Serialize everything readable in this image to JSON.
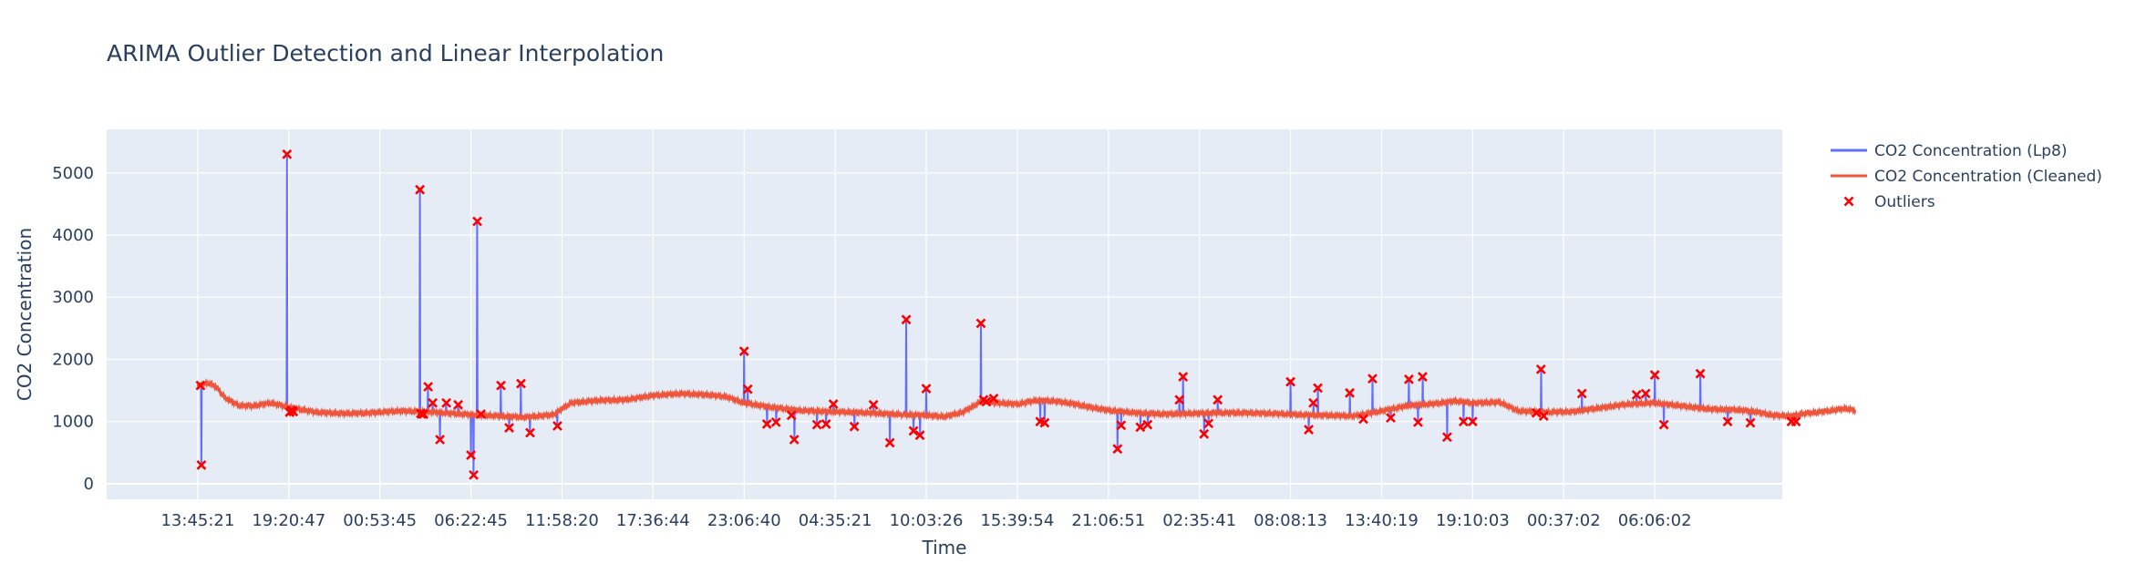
{
  "chart_data": {
    "type": "line",
    "title": "ARIMA Outlier Detection and Linear Interpolation",
    "xlabel": "Time",
    "ylabel": "CO2 Concentration",
    "ylim": [
      -250,
      5700
    ],
    "yticks": [
      0,
      1000,
      2000,
      3000,
      4000,
      5000
    ],
    "xlim": [
      -1.0,
      17.4
    ],
    "xticks": [
      0,
      1,
      2,
      3,
      4,
      5,
      6,
      7,
      8,
      9,
      10,
      11,
      12,
      13,
      14,
      15,
      16
    ],
    "xtick_labels": [
      "13:45:21",
      "19:20:47",
      "00:53:45",
      "06:22:45",
      "11:58:20",
      "17:36:44",
      "23:06:40",
      "04:35:21",
      "10:03:26",
      "15:39:54",
      "21:06:51",
      "02:35:41",
      "08:08:13",
      "13:40:19",
      "19:10:03",
      "00:37:02",
      "06:06:02"
    ],
    "grid": true,
    "legend_position": "top-right",
    "colors": {
      "raw": "#636efa",
      "cleaned": "#ef553b",
      "outliers": "#ff0000",
      "plot_bg": "#e5ecf6",
      "grid": "#ffffff",
      "text": "#2a3f5f"
    },
    "baseline": [
      [
        0.0,
        1560
      ],
      [
        0.05,
        1600
      ],
      [
        0.12,
        1620
      ],
      [
        0.2,
        1560
      ],
      [
        0.3,
        1380
      ],
      [
        0.45,
        1260
      ],
      [
        0.6,
        1250
      ],
      [
        0.8,
        1300
      ],
      [
        1.0,
        1230
      ],
      [
        1.3,
        1150
      ],
      [
        1.6,
        1130
      ],
      [
        1.9,
        1140
      ],
      [
        2.2,
        1170
      ],
      [
        2.5,
        1160
      ],
      [
        2.8,
        1130
      ],
      [
        3.0,
        1110
      ],
      [
        3.3,
        1090
      ],
      [
        3.6,
        1070
      ],
      [
        3.9,
        1110
      ],
      [
        4.1,
        1300
      ],
      [
        4.4,
        1340
      ],
      [
        4.7,
        1350
      ],
      [
        5.0,
        1420
      ],
      [
        5.3,
        1450
      ],
      [
        5.6,
        1430
      ],
      [
        5.8,
        1400
      ],
      [
        6.0,
        1300
      ],
      [
        6.3,
        1230
      ],
      [
        6.6,
        1180
      ],
      [
        6.9,
        1160
      ],
      [
        7.2,
        1150
      ],
      [
        7.5,
        1130
      ],
      [
        7.8,
        1110
      ],
      [
        8.0,
        1100
      ],
      [
        8.2,
        1080
      ],
      [
        8.4,
        1150
      ],
      [
        8.6,
        1320
      ],
      [
        8.8,
        1300
      ],
      [
        9.0,
        1280
      ],
      [
        9.2,
        1340
      ],
      [
        9.4,
        1330
      ],
      [
        9.6,
        1290
      ],
      [
        9.8,
        1230
      ],
      [
        10.0,
        1180
      ],
      [
        10.3,
        1140
      ],
      [
        10.6,
        1120
      ],
      [
        10.9,
        1130
      ],
      [
        11.2,
        1140
      ],
      [
        11.5,
        1140
      ],
      [
        11.8,
        1130
      ],
      [
        12.1,
        1110
      ],
      [
        12.4,
        1100
      ],
      [
        12.7,
        1090
      ],
      [
        13.0,
        1170
      ],
      [
        13.3,
        1260
      ],
      [
        13.6,
        1290
      ],
      [
        13.8,
        1330
      ],
      [
        14.0,
        1300
      ],
      [
        14.3,
        1310
      ],
      [
        14.5,
        1170
      ],
      [
        14.8,
        1150
      ],
      [
        15.1,
        1160
      ],
      [
        15.4,
        1220
      ],
      [
        15.7,
        1280
      ],
      [
        16.0,
        1300
      ],
      [
        16.3,
        1250
      ],
      [
        16.6,
        1200
      ],
      [
        16.9,
        1190
      ],
      [
        17.1,
        1160
      ],
      [
        17.3,
        1100
      ],
      [
        17.5,
        1090
      ],
      [
        17.6,
        1120
      ],
      [
        17.9,
        1170
      ],
      [
        18.1,
        1210
      ],
      [
        18.2,
        1180
      ]
    ],
    "series": [
      {
        "name": "CO2 Concentration (Lp8)",
        "mode": "line"
      },
      {
        "name": "CO2 Concentration (Cleaned)",
        "mode": "line"
      },
      {
        "name": "Outliers",
        "mode": "markers",
        "x": [
          0.03,
          0.04,
          0.98,
          1.01,
          1.03,
          1.05,
          2.44,
          2.45,
          2.46,
          2.48,
          2.53,
          2.58,
          2.66,
          2.73,
          2.86,
          3.0,
          3.03,
          3.07,
          3.11,
          3.33,
          3.42,
          3.55,
          3.65,
          3.95,
          6.0,
          6.04,
          6.25,
          6.35,
          6.52,
          6.55,
          6.8,
          6.9,
          6.98,
          7.21,
          7.42,
          7.6,
          7.78,
          7.86,
          7.93,
          8.0,
          8.6,
          8.63,
          8.66,
          8.74,
          9.25,
          9.3,
          10.1,
          10.14,
          10.35,
          10.43,
          10.78,
          10.82,
          11.05,
          11.1,
          11.2,
          12.0,
          12.2,
          12.25,
          12.3,
          12.65,
          12.8,
          12.9,
          13.1,
          13.3,
          13.4,
          13.45,
          13.72,
          13.9,
          14.0,
          14.7,
          14.75,
          14.78,
          15.2,
          15.8,
          15.9,
          16.0,
          16.1,
          16.5,
          16.8,
          17.05,
          17.5,
          17.55
        ],
        "y": [
          1580,
          300,
          5300,
          1150,
          1180,
          1160,
          4730,
          1130,
          1120,
          1120,
          1560,
          1300,
          710,
          1300,
          1270,
          460,
          140,
          4220,
          1120,
          1580,
          900,
          1610,
          820,
          930,
          2130,
          1520,
          960,
          990,
          1100,
          710,
          950,
          960,
          1280,
          920,
          1270,
          660,
          2640,
          850,
          780,
          1530,
          2580,
          1350,
          1320,
          1370,
          1000,
          980,
          560,
          940,
          910,
          950,
          1350,
          1720,
          800,
          970,
          1350,
          1640,
          870,
          1300,
          1540,
          1460,
          1040,
          1690,
          1060,
          1680,
          990,
          1720,
          750,
          1000,
          1000,
          1140,
          1840,
          1090,
          1450,
          1430,
          1450,
          1750,
          950,
          1770,
          1000,
          980,
          1000,
          1000
        ]
      }
    ]
  }
}
